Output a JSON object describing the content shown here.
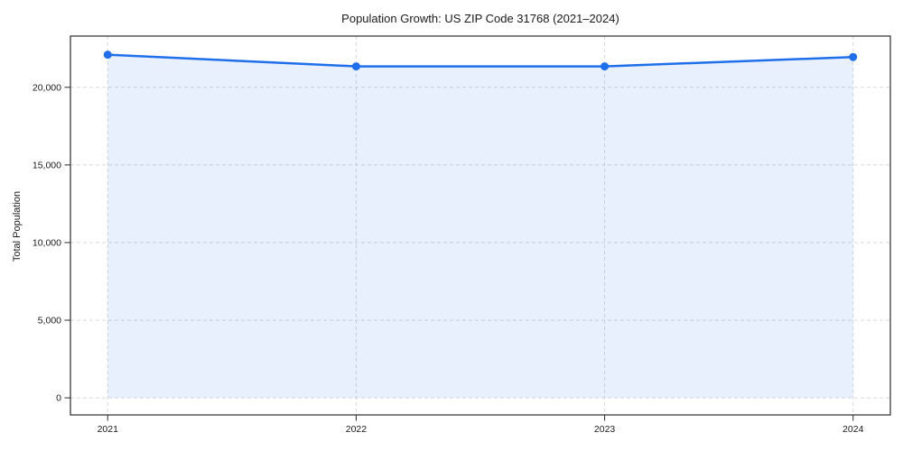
{
  "chart_data": {
    "type": "area",
    "title": "Population Growth: US ZIP Code 31768 (2021–2024)",
    "xlabel": "",
    "ylabel": "Total Population",
    "x": [
      2021,
      2022,
      2023,
      2024
    ],
    "x_tick_labels": [
      "2021",
      "2022",
      "2023",
      "2024"
    ],
    "series": [
      {
        "name": "Total Population",
        "values": [
          22100,
          21350,
          21350,
          21950
        ]
      }
    ],
    "y_ticks": [
      0,
      5000,
      10000,
      15000,
      20000
    ],
    "y_tick_labels": [
      "0",
      "5,000",
      "10,000",
      "15,000",
      "20,000"
    ],
    "xlim": [
      2020.85,
      2024.15
    ],
    "ylim": [
      -1100,
      23300
    ],
    "fill_baseline": 0,
    "grid": true,
    "grid_style": "dashed",
    "legend": false,
    "colors": {
      "line": "#1f6feb",
      "marker": "#1f6feb",
      "fill": "rgba(31, 111, 235, 0.10)",
      "grid": "#d9d9d9",
      "spine": "#2b2b2b",
      "text": "#1a1a1a"
    }
  }
}
